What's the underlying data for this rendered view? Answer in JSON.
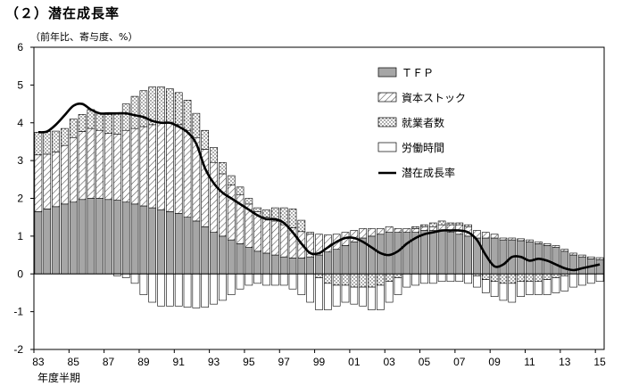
{
  "title": "（２）潜在成長率",
  "subtitle": "（前年比、寄与度、%）",
  "chart_data": {
    "type": "bar",
    "stacked": true,
    "title": "（２）潜在成長率",
    "ylabel": "（前年比、寄与度、%）",
    "xlabel": "年度半期",
    "ylim": [
      -2,
      6
    ],
    "yticks": [
      "6",
      "5",
      "4",
      "3",
      "2",
      "1",
      "0",
      "-1",
      "-2"
    ],
    "ytick_values": [
      6,
      5,
      4,
      3,
      2,
      1,
      0,
      -1,
      -2
    ],
    "xticks": [
      "83",
      "85",
      "87",
      "89",
      "91",
      "93",
      "95",
      "97",
      "99",
      "01",
      "03",
      "05",
      "07",
      "09",
      "11",
      "13",
      "15"
    ],
    "xtick_index": [
      0,
      4,
      8,
      12,
      16,
      20,
      24,
      28,
      32,
      36,
      40,
      44,
      48,
      52,
      56,
      60,
      64
    ],
    "periods": [
      "83H1",
      "83H2",
      "84H1",
      "84H2",
      "85H1",
      "85H2",
      "86H1",
      "86H2",
      "87H1",
      "87H2",
      "88H1",
      "88H2",
      "89H1",
      "89H2",
      "90H1",
      "90H2",
      "91H1",
      "91H2",
      "92H1",
      "92H2",
      "93H1",
      "93H2",
      "94H1",
      "94H2",
      "95H1",
      "95H2",
      "96H1",
      "96H2",
      "97H1",
      "97H2",
      "98H1",
      "98H2",
      "99H1",
      "99H2",
      "00H1",
      "00H2",
      "01H1",
      "01H2",
      "02H1",
      "02H2",
      "03H1",
      "03H2",
      "04H1",
      "04H2",
      "05H1",
      "05H2",
      "06H1",
      "06H2",
      "07H1",
      "07H2",
      "08H1",
      "08H2",
      "09H1",
      "09H2",
      "10H1",
      "10H2",
      "11H1",
      "11H2",
      "12H1",
      "12H2",
      "13H1",
      "13H2",
      "14H1",
      "14H2",
      "15H1"
    ],
    "legend": [
      "ＴＦＰ",
      "資本ストック",
      "就業者数",
      "労働時間",
      "潜在成長率"
    ],
    "legend_position": "top-right",
    "colors": {
      "tfp": "#a6a6a6",
      "line": "#000000"
    },
    "series": [
      {
        "name": "ＴＦＰ",
        "pattern": "solid-gray",
        "values": [
          1.65,
          1.72,
          1.78,
          1.85,
          1.9,
          1.97,
          2.0,
          2.0,
          1.97,
          1.95,
          1.9,
          1.85,
          1.8,
          1.75,
          1.7,
          1.65,
          1.6,
          1.5,
          1.4,
          1.25,
          1.1,
          1.0,
          0.9,
          0.8,
          0.7,
          0.6,
          0.55,
          0.5,
          0.45,
          0.42,
          0.42,
          0.45,
          0.5,
          0.58,
          0.65,
          0.75,
          0.85,
          0.95,
          1.0,
          1.05,
          1.1,
          1.1,
          1.1,
          1.1,
          1.15,
          1.15,
          1.15,
          1.1,
          1.05,
          1.0,
          0.95,
          0.95,
          0.95,
          0.9,
          0.9,
          0.88,
          0.85,
          0.8,
          0.75,
          0.7,
          0.6,
          0.5,
          0.45,
          0.4,
          0.38
        ]
      },
      {
        "name": "資本ストック",
        "pattern": "diagonal-hatch",
        "values": [
          1.5,
          1.45,
          1.45,
          1.55,
          1.7,
          1.8,
          1.85,
          1.8,
          1.75,
          1.75,
          1.9,
          2.0,
          2.1,
          2.2,
          2.3,
          2.35,
          2.35,
          2.3,
          2.2,
          2.05,
          1.85,
          1.65,
          1.45,
          1.3,
          1.15,
          1.05,
          0.95,
          0.9,
          0.85,
          0.8,
          0.7,
          0.6,
          0.55,
          0.45,
          0.4,
          0.35,
          0.3,
          0.25,
          0.2,
          0.15,
          0.15,
          0.1,
          0.1,
          0.1,
          0.1,
          0.1,
          0.15,
          0.2,
          0.25,
          0.25,
          0.2,
          0.15,
          0.1,
          0.05,
          0.05,
          0.05,
          0.05,
          0.05,
          0.05,
          0.05,
          0.05,
          0.05,
          0.05,
          0.05,
          0.05
        ]
      },
      {
        "name": "就業者数",
        "pattern": "dotted",
        "values": [
          0.6,
          0.6,
          0.55,
          0.45,
          0.5,
          0.45,
          0.5,
          0.45,
          0.5,
          0.55,
          0.7,
          0.85,
          0.95,
          1.0,
          0.95,
          0.9,
          0.85,
          0.8,
          0.65,
          0.5,
          0.4,
          0.3,
          0.25,
          0.2,
          0.15,
          0.1,
          0.2,
          0.35,
          0.45,
          0.5,
          0.3,
          0.05,
          -0.1,
          -0.25,
          -0.3,
          -0.3,
          -0.35,
          -0.35,
          -0.35,
          -0.3,
          -0.2,
          -0.1,
          0.0,
          0.05,
          0.05,
          0.1,
          0.1,
          0.05,
          0.05,
          0.05,
          -0.05,
          -0.15,
          -0.2,
          -0.25,
          -0.25,
          -0.2,
          -0.2,
          -0.2,
          -0.15,
          -0.1,
          -0.05,
          0.0,
          0.0,
          0.0,
          0.0
        ]
      },
      {
        "name": "労働時間",
        "pattern": "white",
        "values": [
          0.0,
          0.0,
          0.0,
          0.0,
          0.0,
          0.0,
          0.0,
          0.0,
          0.0,
          -0.05,
          -0.1,
          -0.25,
          -0.55,
          -0.75,
          -0.85,
          -0.85,
          -0.85,
          -0.88,
          -0.9,
          -0.88,
          -0.8,
          -0.7,
          -0.55,
          -0.4,
          -0.3,
          -0.25,
          -0.3,
          -0.3,
          -0.3,
          -0.4,
          -0.55,
          -0.75,
          -0.85,
          -0.7,
          -0.55,
          -0.45,
          -0.45,
          -0.5,
          -0.6,
          -0.65,
          -0.55,
          -0.45,
          -0.35,
          -0.3,
          -0.25,
          -0.25,
          -0.2,
          -0.2,
          -0.2,
          -0.25,
          -0.3,
          -0.35,
          -0.4,
          -0.45,
          -0.5,
          -0.4,
          -0.35,
          -0.35,
          -0.4,
          -0.4,
          -0.4,
          -0.35,
          -0.3,
          -0.25,
          -0.2
        ]
      },
      {
        "name": "潜在成長率",
        "type": "line",
        "values": [
          3.75,
          3.77,
          3.95,
          4.2,
          4.45,
          4.5,
          4.35,
          4.25,
          4.25,
          4.25,
          4.25,
          4.2,
          4.15,
          4.05,
          4.0,
          4.0,
          3.9,
          3.75,
          3.45,
          2.8,
          2.4,
          2.15,
          2.0,
          1.85,
          1.7,
          1.55,
          1.45,
          1.45,
          1.35,
          1.1,
          0.8,
          0.55,
          0.55,
          0.7,
          0.85,
          0.95,
          0.95,
          0.85,
          0.7,
          0.55,
          0.5,
          0.6,
          0.8,
          0.95,
          1.05,
          1.1,
          1.15,
          1.15,
          1.15,
          1.1,
          0.9,
          0.5,
          0.2,
          0.25,
          0.45,
          0.45,
          0.35,
          0.4,
          0.35,
          0.25,
          0.15,
          0.1,
          0.15,
          0.2,
          0.25
        ]
      }
    ]
  }
}
